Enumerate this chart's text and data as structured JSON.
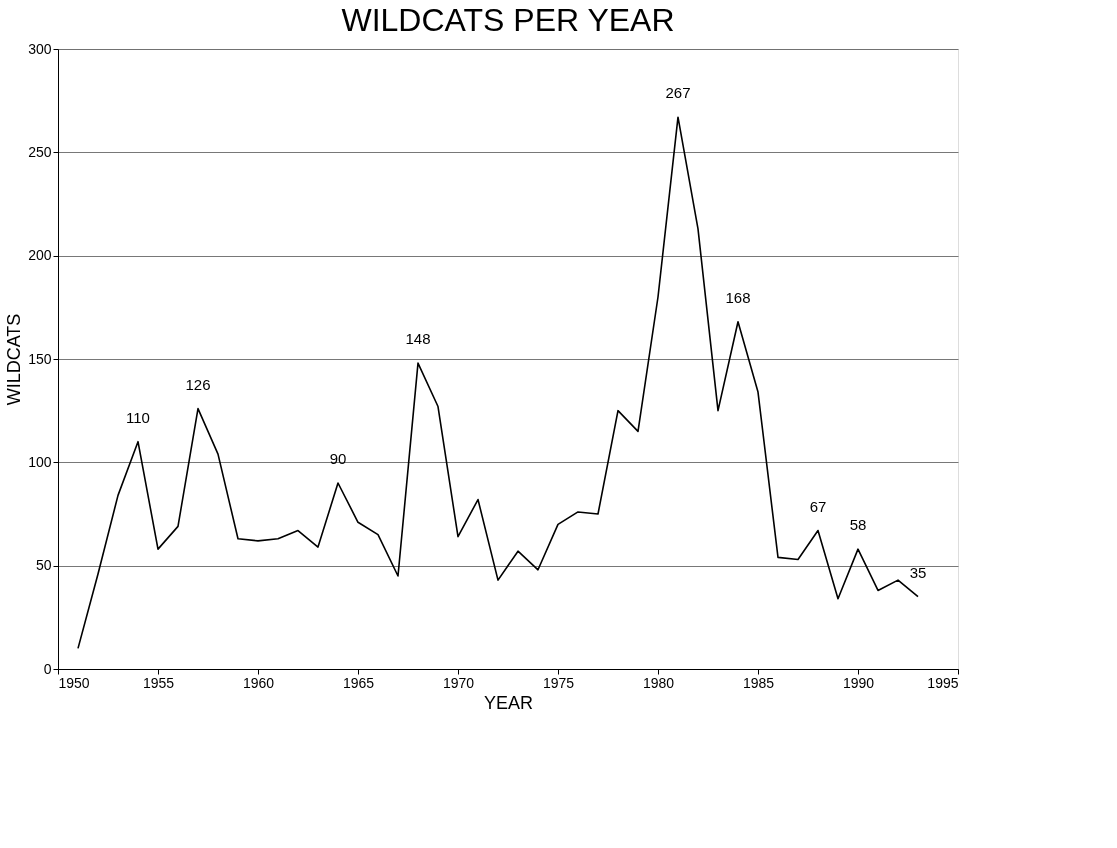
{
  "chart_data": {
    "type": "line",
    "title": "WILDCATS PER YEAR",
    "xlabel": "YEAR",
    "ylabel": "WILDCATS",
    "x": [
      1951,
      1952,
      1953,
      1954,
      1955,
      1956,
      1957,
      1958,
      1959,
      1960,
      1961,
      1962,
      1963,
      1964,
      1965,
      1966,
      1967,
      1968,
      1969,
      1970,
      1971,
      1972,
      1973,
      1974,
      1975,
      1976,
      1977,
      1978,
      1979,
      1980,
      1981,
      1982,
      1983,
      1984,
      1985,
      1986,
      1987,
      1988,
      1989,
      1990,
      1991,
      1992,
      1993
    ],
    "series": [
      {
        "color": "#000000",
        "values": [
          10,
          46,
          84,
          110,
          58,
          69,
          126,
          104,
          63,
          62,
          63,
          67,
          59,
          90,
          71,
          65,
          45,
          148,
          127,
          64,
          82,
          43,
          57,
          48,
          70,
          76,
          75,
          125,
          115,
          180,
          267,
          213,
          125,
          168,
          134,
          54,
          53,
          67,
          34,
          58,
          38,
          43,
          35
        ],
        "value_labels": [
          null,
          null,
          null,
          "110",
          null,
          null,
          "126",
          null,
          null,
          null,
          null,
          null,
          null,
          "90",
          null,
          null,
          null,
          "148",
          null,
          null,
          null,
          null,
          null,
          null,
          null,
          null,
          null,
          null,
          null,
          null,
          "267",
          null,
          null,
          "168",
          null,
          null,
          null,
          "67",
          null,
          "58",
          null,
          null,
          "35"
        ]
      }
    ],
    "xlim": [
      1950,
      1995
    ],
    "xticks": [
      1950,
      1955,
      1960,
      1965,
      1970,
      1975,
      1980,
      1985,
      1990,
      1995
    ],
    "ylim": [
      0,
      300
    ],
    "yticks": [
      0,
      50,
      100,
      150,
      200,
      250,
      300
    ],
    "grid": "y",
    "marker": "none",
    "line_style": "solid"
  }
}
